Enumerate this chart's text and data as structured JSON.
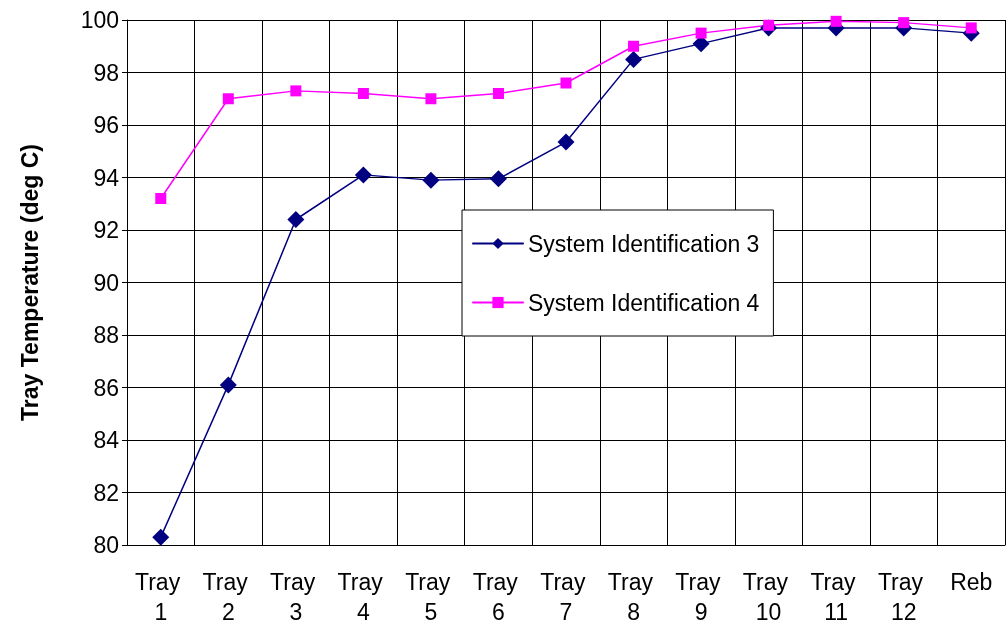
{
  "chart_data": {
    "type": "line",
    "ylabel": "Tray Temperature (deg C)",
    "categories": [
      "Tray 1",
      "Tray 2",
      "Tray 3",
      "Tray 4",
      "Tray 5",
      "Tray 6",
      "Tray 7",
      "Tray 8",
      "Tray 9",
      "Tray 10",
      "Tray 11",
      "Tray 12",
      "Reb"
    ],
    "series": [
      {
        "name": "System Identification 3",
        "color": "#000080",
        "marker": "diamond",
        "values": [
          80.3,
          86.1,
          92.4,
          94.1,
          93.9,
          93.95,
          95.35,
          98.5,
          99.1,
          99.7,
          99.7,
          99.7,
          99.5
        ]
      },
      {
        "name": "System Identification 4",
        "color": "#ff00ff",
        "marker": "square",
        "values": [
          93.2,
          97.0,
          97.3,
          97.2,
          97.0,
          97.2,
          97.6,
          99.0,
          99.5,
          99.8,
          99.95,
          99.9,
          99.7
        ]
      }
    ],
    "ylim": [
      80,
      100
    ],
    "yticks": [
      80,
      82,
      84,
      86,
      88,
      90,
      92,
      94,
      96,
      98,
      100
    ],
    "grid": true,
    "legend": "center right",
    "line_style": "solid"
  }
}
